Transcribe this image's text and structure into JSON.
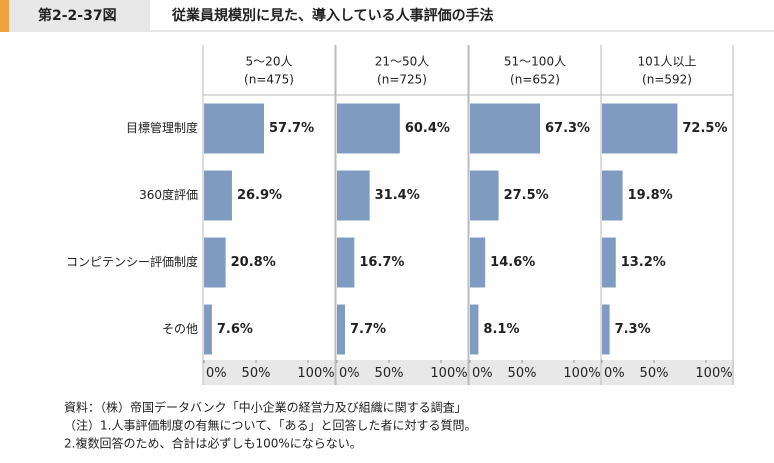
{
  "figure_label": "第2-2-37図",
  "chart_data": {
    "type": "bar",
    "orientation": "horizontal",
    "title": "従業員規模別に見た、導入している人事評価の手法",
    "categories": [
      "目標管理制度",
      "360度評価",
      "コンピテンシー評価制度",
      "その他"
    ],
    "series": [
      {
        "name": "5～20人",
        "subtitle": "(n=475)",
        "color": "#7f9cc0",
        "values": [
          57.7,
          26.9,
          20.8,
          7.6
        ],
        "value_labels": [
          "57.7%",
          "26.9%",
          "20.8%",
          "7.6%"
        ]
      },
      {
        "name": "21～50人",
        "subtitle": "(n=725)",
        "color": "#7f9cc0",
        "values": [
          60.4,
          31.4,
          16.7,
          7.7
        ],
        "value_labels": [
          "60.4%",
          "31.4%",
          "16.7%",
          "7.7%"
        ]
      },
      {
        "name": "51～100人",
        "subtitle": "(n=652)",
        "color": "#7f9cc0",
        "values": [
          67.3,
          27.5,
          14.6,
          8.1
        ],
        "value_labels": [
          "67.3%",
          "27.5%",
          "14.6%",
          "8.1%"
        ]
      },
      {
        "name": "101人以上",
        "subtitle": "(n=592)",
        "color": "#7f9cc0",
        "values": [
          72.5,
          19.8,
          13.2,
          7.3
        ],
        "value_labels": [
          "72.5%",
          "19.8%",
          "13.2%",
          "7.3%"
        ]
      }
    ],
    "xlim": [
      0,
      100
    ],
    "xticks": [
      {
        "value": 0,
        "label": "0%"
      },
      {
        "value": 50,
        "label": "50%"
      },
      {
        "value": 100,
        "label": "100%"
      }
    ]
  },
  "notes": [
    "資料：（株）帝国データバンク「中小企業の経営力及び組織に関する調査」",
    "（注）1.人事評価制度の有無について、「ある」と回答した者に対する質問。",
    "2.複数回答のため、合計は必ずしも100%にならない。"
  ]
}
